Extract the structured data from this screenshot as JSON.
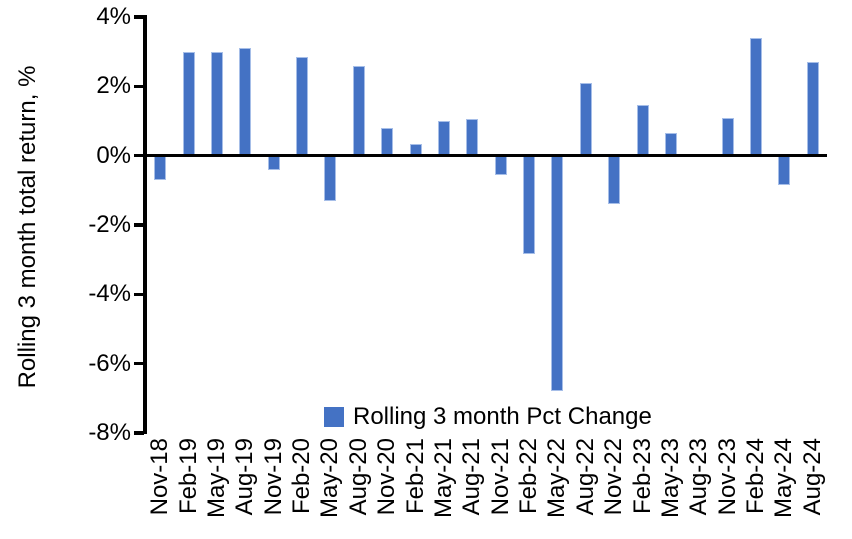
{
  "chart_data": {
    "type": "bar",
    "title": "",
    "xlabel": "",
    "ylabel": "Rolling 3 month total return, %",
    "legend_label": "Rolling 3 month Pct Change",
    "legend_position": "bottom-center",
    "categories": [
      "Nov-18",
      "Feb-19",
      "May-19",
      "Aug-19",
      "Nov-19",
      "Feb-20",
      "May-20",
      "Aug-20",
      "Nov-20",
      "Feb-21",
      "May-21",
      "Aug-21",
      "Nov-21",
      "Feb-22",
      "May-22",
      "Aug-22",
      "Nov-22",
      "Feb-23",
      "May-23",
      "Aug-23",
      "Nov-23",
      "Feb-24",
      "May-24",
      "Aug-24"
    ],
    "values": [
      -0.7,
      3.0,
      3.0,
      3.1,
      -0.4,
      2.85,
      -1.3,
      2.6,
      0.8,
      0.35,
      1.0,
      1.05,
      -0.55,
      -2.85,
      -6.8,
      2.1,
      -1.4,
      1.45,
      0.65,
      0.0,
      1.1,
      3.4,
      -0.85,
      2.7
    ],
    "ylim": [
      -8,
      4
    ],
    "ytick_step": 2,
    "yticks": [
      "4%",
      "2%",
      "0%",
      "-2%",
      "-4%",
      "-6%",
      "-8%"
    ],
    "grid": false,
    "colors": {
      "bar": "#4472C4",
      "bar_edge": "#A6BEE8",
      "axis": "#000000",
      "text": "#000000",
      "background": "#FFFFFF"
    }
  }
}
